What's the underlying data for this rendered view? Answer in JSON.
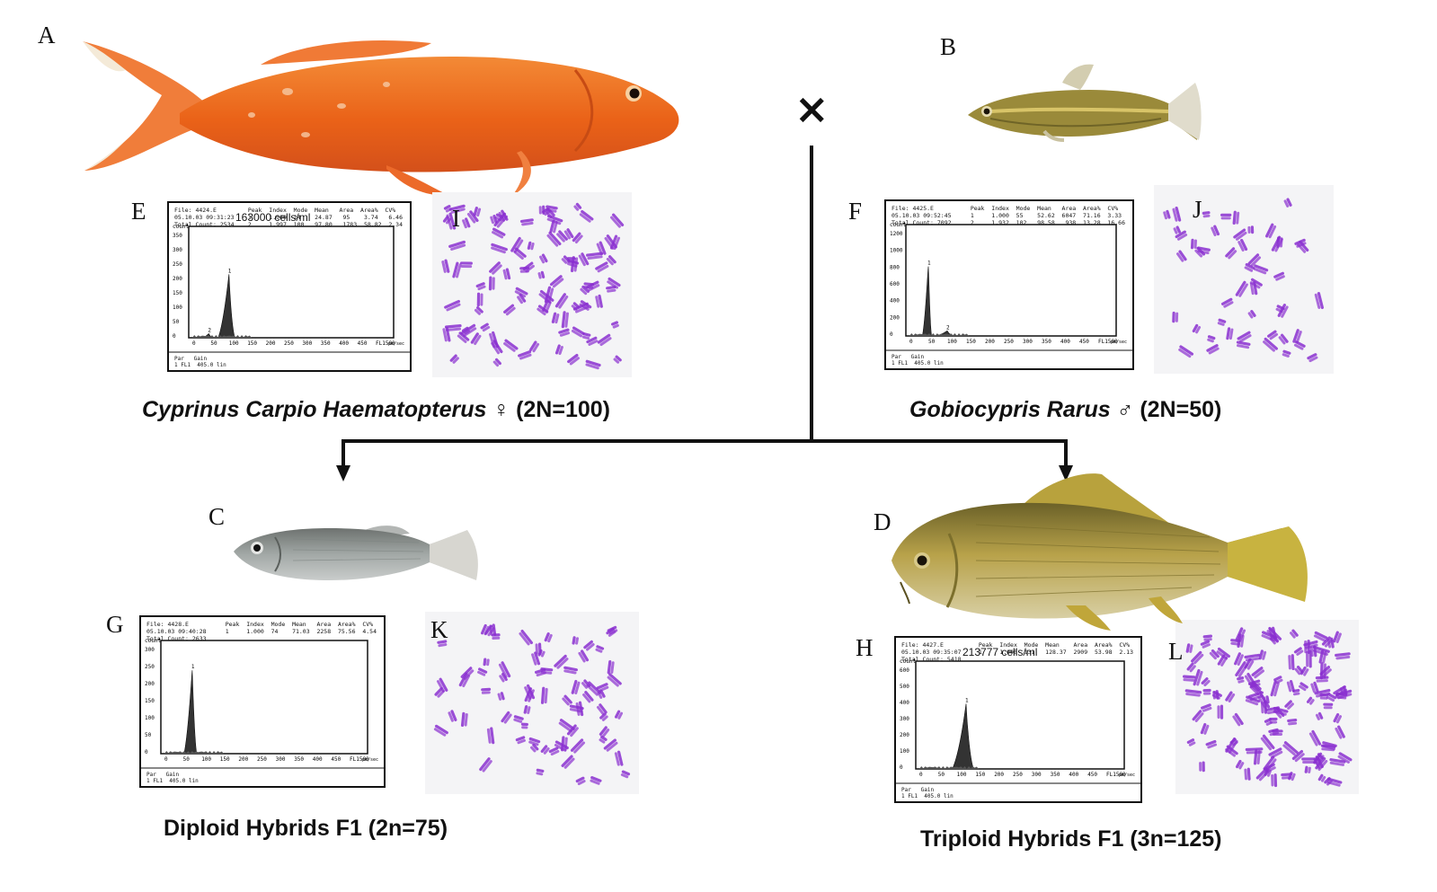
{
  "labels": {
    "A": "A",
    "B": "B",
    "C": "C",
    "D": "D",
    "E": "E",
    "F": "F",
    "G": "G",
    "H": "H",
    "I": "I",
    "J": "J",
    "K": "K",
    "L": "L"
  },
  "cross_symbol": "×",
  "captions": {
    "parent_female_species": "Cyprinus Carpio Haematopterus",
    "parent_female_rest": " ♀ (2N=100)",
    "parent_male_species": "Gobiocypris Rarus",
    "parent_male_rest": " ♂ (2N=50)",
    "diploid": "Diploid Hybrids F1 (2n=75)",
    "triploid": "Triploid Hybrids F1 (3n=125)"
  },
  "fish_colors": {
    "A": "#ee6a1f",
    "B": "#9a8a3a",
    "C": "#8f9694",
    "D": "#b9a248"
  },
  "chromosome_color": "#8a2fd0",
  "histograms": {
    "E": {
      "header_left": "File: 4424.E\n05.10.03 09:31:23\nTotal Count: 2534",
      "header_mid": "163000 cells/ml",
      "header_right": "Peak  Index  Mode  Mean   Area  Area%  CV%\n1     1.000  24    24.87   95    3.74   6.46\n2     1.997  100   97.80   1783  58.82  2.34",
      "y_title": "count",
      "yticks": [
        "350",
        "300",
        "250",
        "200",
        "150",
        "100",
        "50",
        "0"
      ],
      "xticks": [
        "0",
        "50",
        "100",
        "150",
        "200",
        "250",
        "300",
        "350",
        "400",
        "450",
        "FL1500"
      ],
      "x_unit": "pe/sec",
      "footer": "Par   Gain\n1 FL1  405.0 lin",
      "peaks": [
        {
          "x": 100,
          "h": 0.62
        },
        {
          "x": 45,
          "h": 0.04
        }
      ],
      "peak_labels": [
        "1",
        "2"
      ]
    },
    "F": {
      "header_left": "File: 4425.E\n05.10.03 09:52:45\nTotal Count: 7092",
      "header_mid": "",
      "header_right": "Peak  Index  Mode  Mean   Area  Area%  CV%\n1     1.000  55    52.62  6047  71.16  3.33\n2     1.932  102   98.58   938  13.28  16.66",
      "y_title": "count",
      "yticks": [
        "1200",
        "1000",
        "800",
        "600",
        "400",
        "200",
        "0"
      ],
      "xticks": [
        "0",
        "50",
        "100",
        "150",
        "200",
        "250",
        "300",
        "350",
        "400",
        "450",
        "FL1500"
      ],
      "x_unit": "pe/sec",
      "footer": "Par   Gain\n1 FL1  405.0 lin",
      "peaks": [
        {
          "x": 50,
          "h": 0.68
        },
        {
          "x": 100,
          "h": 0.05
        }
      ],
      "peak_labels": [
        "1",
        "2"
      ]
    },
    "G": {
      "header_left": "File: 4428.E\n05.10.03 09:40:28\nTotal Count: 2633",
      "header_mid": "",
      "header_right": "Peak  Index  Mode  Mean   Area  Area%  CV%\n1     1.000  74    71.03  2258  75.56  4.54",
      "y_title": "count",
      "yticks": [
        "300",
        "250",
        "200",
        "150",
        "100",
        "50",
        "0"
      ],
      "xticks": [
        "0",
        "50",
        "100",
        "150",
        "200",
        "250",
        "300",
        "350",
        "400",
        "450",
        "FL1500"
      ],
      "x_unit": "pe/sec",
      "footer": "Par   Gain\n1 FL1  405.0 lin",
      "peaks": [
        {
          "x": 75,
          "h": 0.8
        }
      ],
      "peak_labels": [
        "1"
      ]
    },
    "H": {
      "header_left": "File: 4427.E\n05.10.03 09:35:07\nTotal Count: 5418",
      "header_mid": "213777 cells/ml",
      "header_right": "Peak  Index  Mode  Mean    Area  Area%  CV%\n1     1.000  131   128.37  2909  53.98  2.13",
      "y_title": "count",
      "yticks": [
        "600",
        "500",
        "400",
        "300",
        "200",
        "100",
        "0"
      ],
      "xticks": [
        "0",
        "50",
        "100",
        "150",
        "200",
        "250",
        "300",
        "350",
        "400",
        "450",
        "FL1500"
      ],
      "x_unit": "pe/sec",
      "footer": "Par   Gain\n1 FL1  405.0 lin",
      "peaks": [
        {
          "x": 125,
          "h": 0.66
        }
      ],
      "peak_labels": [
        "1"
      ]
    }
  }
}
